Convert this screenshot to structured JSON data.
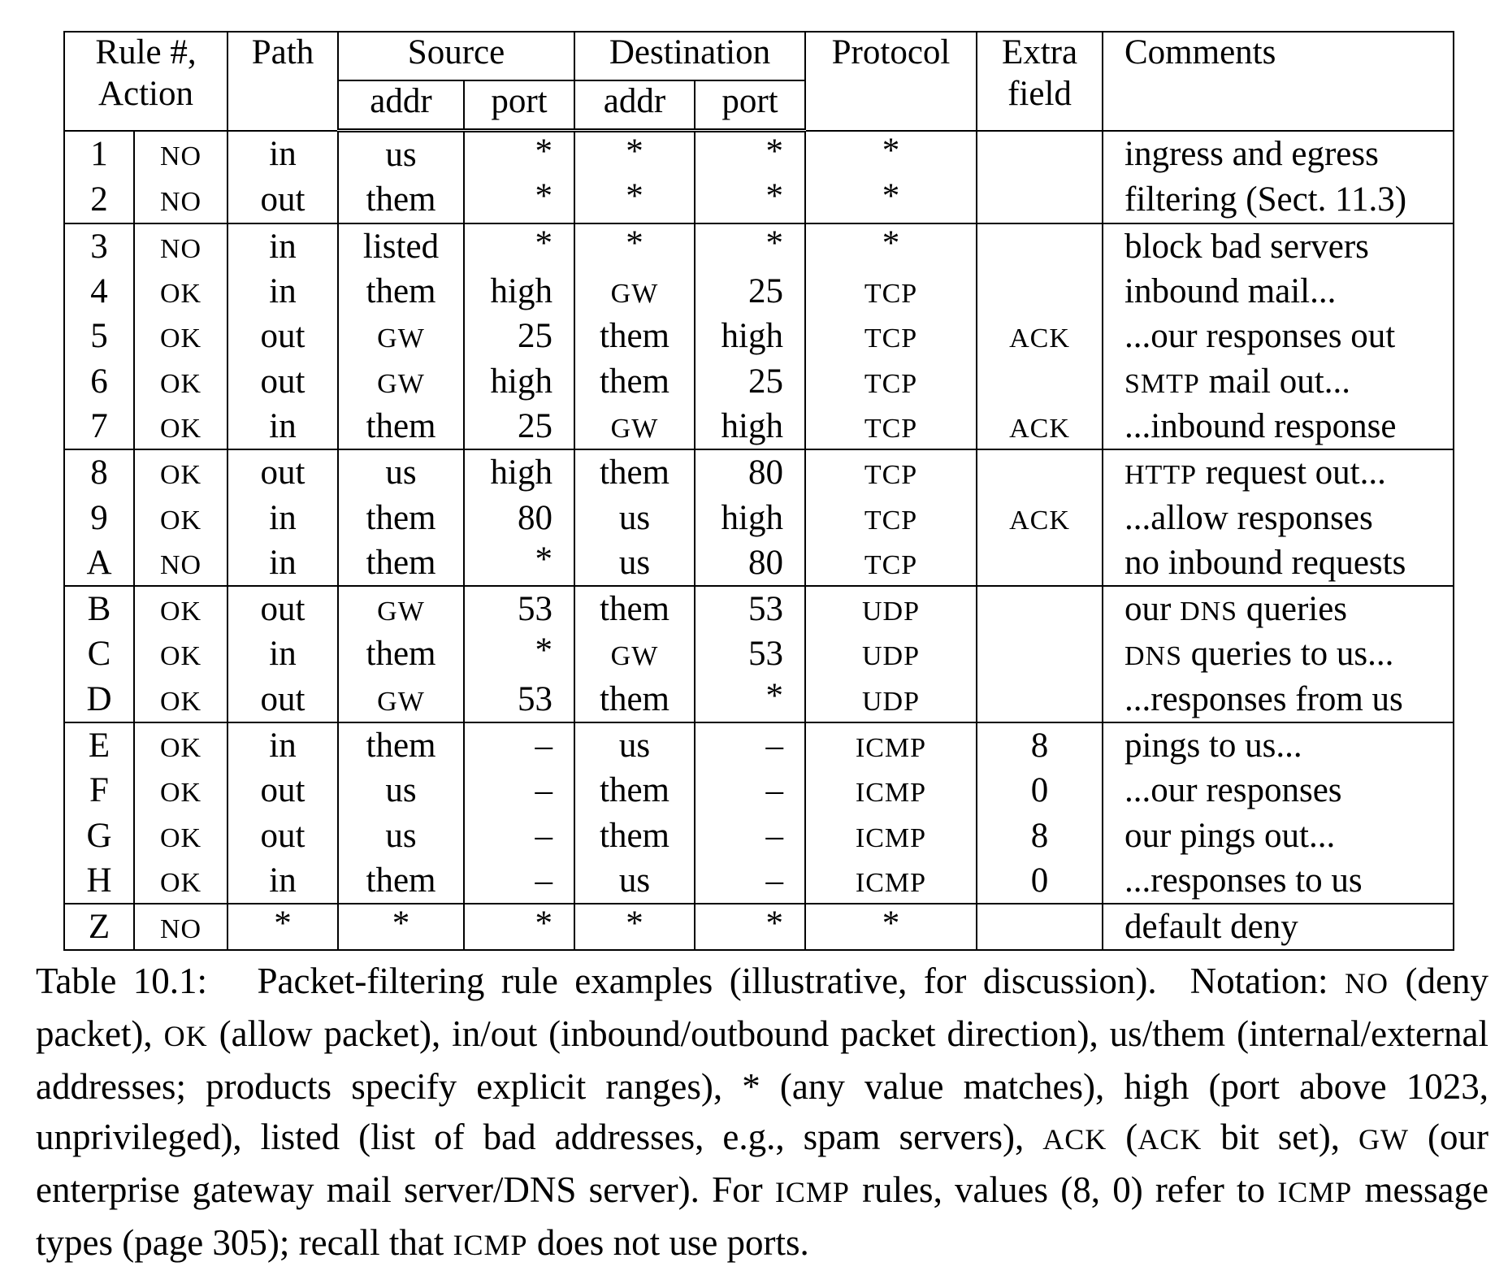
{
  "table": {
    "headers": {
      "rule_action": [
        "Rule #,",
        "Action"
      ],
      "path": "Path",
      "source": "Source",
      "destination": "Destination",
      "protocol": "Protocol",
      "extra": [
        "Extra",
        "field"
      ],
      "comments": "Comments",
      "sub": {
        "src_addr": "addr",
        "src_port": "port",
        "dst_addr": "addr",
        "dst_port": "port"
      }
    },
    "groups": [
      [
        {
          "rule": "1",
          "action": "NO",
          "path": "in",
          "src_addr": "us",
          "src_port": "*",
          "dst_addr": "*",
          "dst_port": "*",
          "protocol": "*",
          "extra": "",
          "comment": "ingress and egress"
        },
        {
          "rule": "2",
          "action": "NO",
          "path": "out",
          "src_addr": "them",
          "src_port": "*",
          "dst_addr": "*",
          "dst_port": "*",
          "protocol": "*",
          "extra": "",
          "comment": "filtering (Sect. 11.3)"
        }
      ],
      [
        {
          "rule": "3",
          "action": "NO",
          "path": "in",
          "src_addr": "listed",
          "src_port": "*",
          "dst_addr": "*",
          "dst_port": "*",
          "protocol": "*",
          "extra": "",
          "comment": "block bad servers"
        },
        {
          "rule": "4",
          "action": "OK",
          "path": "in",
          "src_addr": "them",
          "src_port": "high",
          "dst_addr": "GW",
          "dst_port": "25",
          "protocol": "TCP",
          "extra": "",
          "comment": "inbound mail..."
        },
        {
          "rule": "5",
          "action": "OK",
          "path": "out",
          "src_addr": "GW",
          "src_port": "25",
          "dst_addr": "them",
          "dst_port": "high",
          "protocol": "TCP",
          "extra": "ACK",
          "comment": "...our responses out"
        },
        {
          "rule": "6",
          "action": "OK",
          "path": "out",
          "src_addr": "GW",
          "src_port": "high",
          "dst_addr": "them",
          "dst_port": "25",
          "protocol": "TCP",
          "extra": "",
          "comment_sc": "SMTP",
          "comment": " mail out..."
        },
        {
          "rule": "7",
          "action": "OK",
          "path": "in",
          "src_addr": "them",
          "src_port": "25",
          "dst_addr": "GW",
          "dst_port": "high",
          "protocol": "TCP",
          "extra": "ACK",
          "comment": "...inbound response"
        }
      ],
      [
        {
          "rule": "8",
          "action": "OK",
          "path": "out",
          "src_addr": "us",
          "src_port": "high",
          "dst_addr": "them",
          "dst_port": "80",
          "protocol": "TCP",
          "extra": "",
          "comment_sc": "HTTP",
          "comment": " request out..."
        },
        {
          "rule": "9",
          "action": "OK",
          "path": "in",
          "src_addr": "them",
          "src_port": "80",
          "dst_addr": "us",
          "dst_port": "high",
          "protocol": "TCP",
          "extra": "ACK",
          "comment": "...allow responses"
        },
        {
          "rule": "A",
          "action": "NO",
          "path": "in",
          "src_addr": "them",
          "src_port": "*",
          "dst_addr": "us",
          "dst_port": "80",
          "protocol": "TCP",
          "extra": "",
          "comment": "no inbound requests"
        }
      ],
      [
        {
          "rule": "B",
          "action": "OK",
          "path": "out",
          "src_addr": "GW",
          "src_port": "53",
          "dst_addr": "them",
          "dst_port": "53",
          "protocol": "UDP",
          "extra": "",
          "comment_pre": "our ",
          "comment_sc": "DNS",
          "comment": " queries"
        },
        {
          "rule": "C",
          "action": "OK",
          "path": "in",
          "src_addr": "them",
          "src_port": "*",
          "dst_addr": "GW",
          "dst_port": "53",
          "protocol": "UDP",
          "extra": "",
          "comment_sc": "DNS",
          "comment": " queries to us..."
        },
        {
          "rule": "D",
          "action": "OK",
          "path": "out",
          "src_addr": "GW",
          "src_port": "53",
          "dst_addr": "them",
          "dst_port": "*",
          "protocol": "UDP",
          "extra": "",
          "comment": "...responses from us"
        }
      ],
      [
        {
          "rule": "E",
          "action": "OK",
          "path": "in",
          "src_addr": "them",
          "src_port": "–",
          "dst_addr": "us",
          "dst_port": "–",
          "protocol": "ICMP",
          "extra": "8",
          "comment": "pings to us..."
        },
        {
          "rule": "F",
          "action": "OK",
          "path": "out",
          "src_addr": "us",
          "src_port": "–",
          "dst_addr": "them",
          "dst_port": "–",
          "protocol": "ICMP",
          "extra": "0",
          "comment": "...our responses"
        },
        {
          "rule": "G",
          "action": "OK",
          "path": "out",
          "src_addr": "us",
          "src_port": "–",
          "dst_addr": "them",
          "dst_port": "–",
          "protocol": "ICMP",
          "extra": "8",
          "comment": "our pings out..."
        },
        {
          "rule": "H",
          "action": "OK",
          "path": "in",
          "src_addr": "them",
          "src_port": "–",
          "dst_addr": "us",
          "dst_port": "–",
          "protocol": "ICMP",
          "extra": "0",
          "comment": "...responses to us"
        }
      ],
      [
        {
          "rule": "Z",
          "action": "NO",
          "path": "*",
          "src_addr": "*",
          "src_port": "*",
          "dst_addr": "*",
          "dst_port": "*",
          "protocol": "*",
          "extra": "",
          "comment": "default deny"
        }
      ]
    ]
  },
  "caption": [
    {
      "t": "Table 10.1:   Packet-filtering rule examples (illustrative, for discussion).  Notation: "
    },
    {
      "sc": "NO"
    },
    {
      "t": " (deny packet), "
    },
    {
      "sc": "OK"
    },
    {
      "t": " (allow packet), in/out (inbound/outbound packet direction), us/them (internal/external addresses; products specify explicit ranges), * (any value matches), high (port above 1023, unprivileged), listed (list of bad addresses, e.g., spam servers), "
    },
    {
      "sc": "ACK"
    },
    {
      "t": " ("
    },
    {
      "sc": "ACK"
    },
    {
      "t": " bit set), "
    },
    {
      "sc": "GW"
    },
    {
      "t": " (our enterprise gateway mail server/DNS server). For "
    },
    {
      "sc": "ICMP"
    },
    {
      "t": " rules, values (8, 0) refer to "
    },
    {
      "sc": "ICMP"
    },
    {
      "t": " message types (page 305); recall that "
    },
    {
      "sc": "ICMP"
    },
    {
      "t": " does not use ports."
    }
  ]
}
